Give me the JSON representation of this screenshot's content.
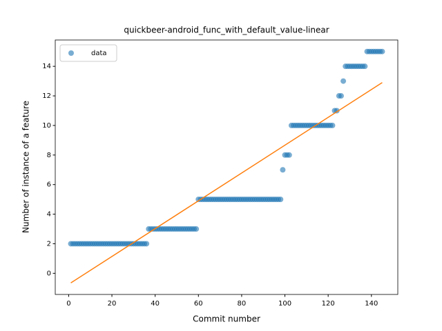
{
  "chart_data": {
    "type": "scatter",
    "title": "quickbeer-android_func_with_default_value-linear",
    "xlabel": "Commit number",
    "ylabel": "Number of instance of a feature",
    "xlim": [
      -6.2,
      152.2
    ],
    "ylim": [
      -1.43,
      15.78
    ],
    "xticks": [
      0,
      20,
      40,
      60,
      80,
      100,
      120,
      140
    ],
    "yticks": [
      0,
      2,
      4,
      6,
      8,
      10,
      12,
      14
    ],
    "legend": "upper left",
    "series": [
      {
        "name": "data",
        "color": "#1f77b4",
        "x": [
          1,
          2,
          3,
          4,
          5,
          6,
          7,
          8,
          9,
          10,
          11,
          12,
          13,
          14,
          15,
          16,
          17,
          18,
          19,
          20,
          21,
          22,
          23,
          24,
          25,
          26,
          27,
          28,
          29,
          30,
          31,
          32,
          33,
          34,
          35,
          36,
          37,
          38,
          39,
          40,
          41,
          42,
          43,
          44,
          45,
          46,
          47,
          48,
          49,
          50,
          51,
          52,
          53,
          54,
          55,
          56,
          57,
          58,
          59,
          60,
          61,
          62,
          63,
          64,
          65,
          66,
          67,
          68,
          69,
          70,
          71,
          72,
          73,
          74,
          75,
          76,
          77,
          78,
          79,
          80,
          81,
          82,
          83,
          84,
          85,
          86,
          87,
          88,
          89,
          90,
          91,
          92,
          93,
          94,
          95,
          96,
          97,
          98,
          99,
          100,
          101,
          102,
          103,
          104,
          105,
          106,
          107,
          108,
          109,
          110,
          111,
          112,
          113,
          114,
          115,
          116,
          117,
          118,
          119,
          120,
          121,
          122,
          123,
          124,
          125,
          126,
          127,
          128,
          129,
          130,
          131,
          132,
          133,
          134,
          135,
          136,
          137,
          138,
          139,
          140,
          141,
          142,
          143,
          144,
          145
        ],
        "values": [
          2,
          2,
          2,
          2,
          2,
          2,
          2,
          2,
          2,
          2,
          2,
          2,
          2,
          2,
          2,
          2,
          2,
          2,
          2,
          2,
          2,
          2,
          2,
          2,
          2,
          2,
          2,
          2,
          2,
          2,
          2,
          2,
          2,
          2,
          2,
          2,
          3,
          3,
          3,
          3,
          3,
          3,
          3,
          3,
          3,
          3,
          3,
          3,
          3,
          3,
          3,
          3,
          3,
          3,
          3,
          3,
          3,
          3,
          3,
          5,
          5,
          5,
          5,
          5,
          5,
          5,
          5,
          5,
          5,
          5,
          5,
          5,
          5,
          5,
          5,
          5,
          5,
          5,
          5,
          5,
          5,
          5,
          5,
          5,
          5,
          5,
          5,
          5,
          5,
          5,
          5,
          5,
          5,
          5,
          5,
          5,
          5,
          5,
          7,
          8,
          8,
          8,
          10,
          10,
          10,
          10,
          10,
          10,
          10,
          10,
          10,
          10,
          10,
          10,
          10,
          10,
          10,
          10,
          10,
          10,
          10,
          10,
          11,
          11,
          12,
          12,
          13,
          14,
          14,
          14,
          14,
          14,
          14,
          14,
          14,
          14,
          14,
          15,
          15,
          15,
          15,
          15,
          15,
          15,
          15
        ]
      }
    ],
    "fit": {
      "x": [
        1,
        145
      ],
      "values": [
        -0.65,
        12.9
      ],
      "color": "#ff7f0e"
    }
  }
}
